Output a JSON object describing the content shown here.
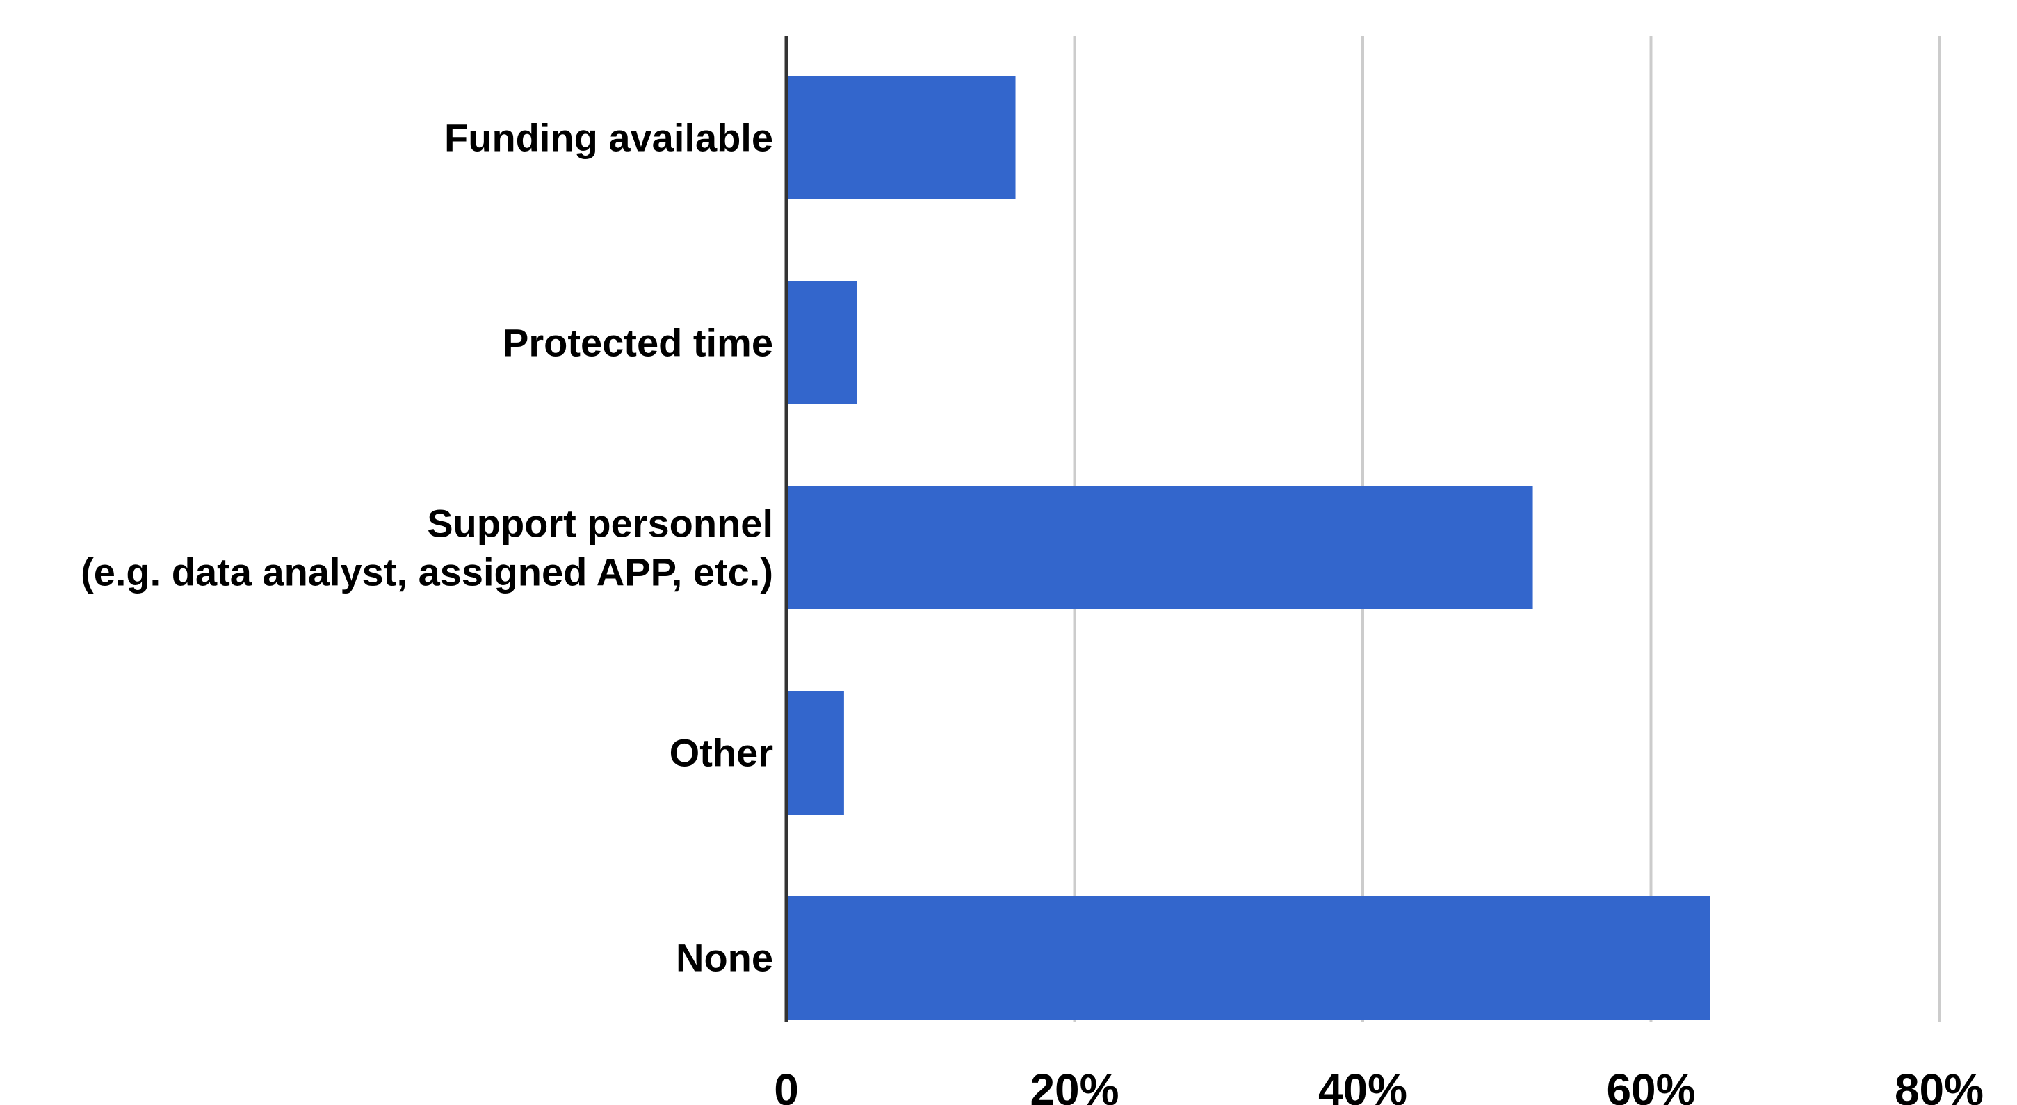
{
  "chart_data": {
    "type": "bar",
    "orientation": "horizontal",
    "title": "",
    "xlabel": "",
    "ylabel": "",
    "categories": [
      [
        "Funding available"
      ],
      [
        "Protected time"
      ],
      [
        "Support personnel",
        "(e.g. data analyst, assigned APP, etc.)"
      ],
      [
        "Other"
      ],
      [
        "None"
      ]
    ],
    "series": [
      {
        "values": [
          15.9,
          4.9,
          51.8,
          4.0,
          64.1
        ]
      }
    ],
    "xlim": [
      0,
      80
    ],
    "x_ticks": [
      0,
      20,
      40,
      60,
      80
    ],
    "x_tick_labels": [
      "0",
      "20%",
      "40%",
      "60%",
      "80%"
    ],
    "grid": true,
    "legend": "none",
    "bar_color": "#3366cc"
  }
}
